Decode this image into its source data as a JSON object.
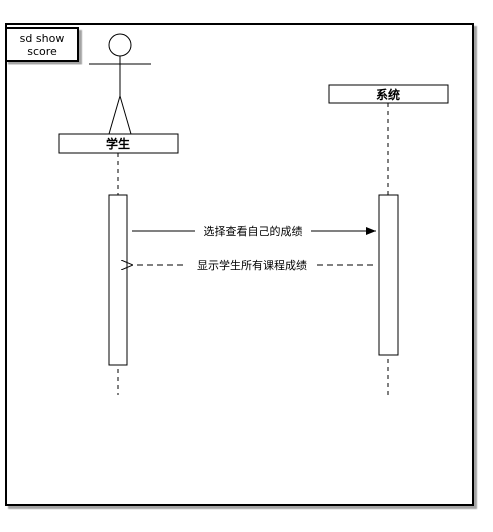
{
  "frame": {
    "title_line1": "sd show",
    "title_line2": "score"
  },
  "lifelines": [
    {
      "id": "student",
      "label": "学生",
      "kind": "actor"
    },
    {
      "id": "system",
      "label": "系统",
      "kind": "object"
    }
  ],
  "messages": [
    {
      "label": "选择查看自己的成绩",
      "from": "student",
      "to": "system",
      "style": "solid"
    },
    {
      "label": "显示学生所有课程成绩",
      "from": "system",
      "to": "student",
      "style": "dashed"
    }
  ]
}
